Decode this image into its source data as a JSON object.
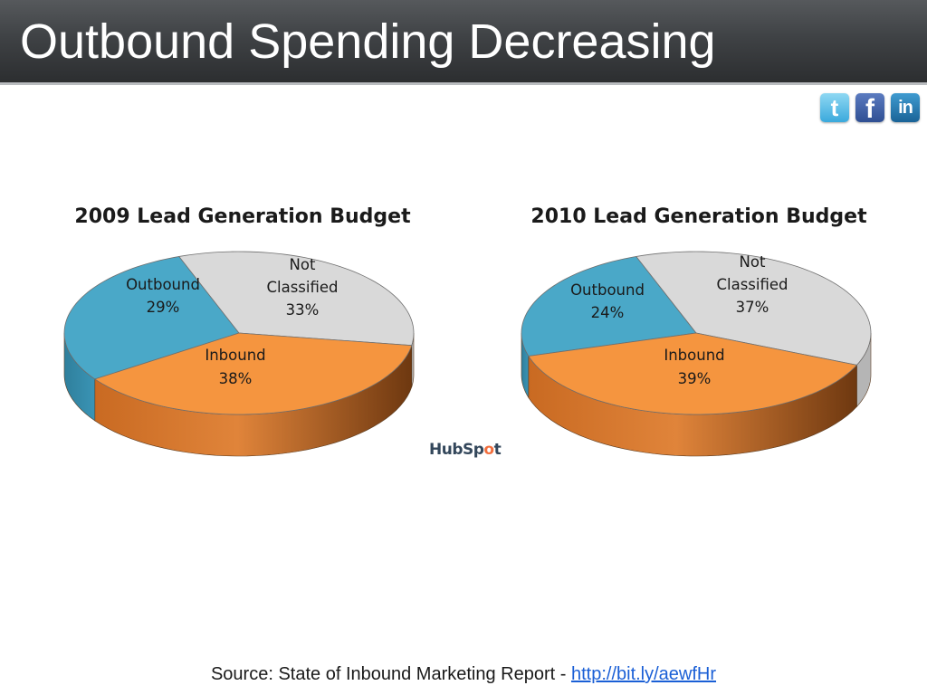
{
  "slide": {
    "title": "Outbound Spending Decreasing"
  },
  "social": [
    {
      "name": "twitter",
      "glyph": "t",
      "color": "#3aa9dc"
    },
    {
      "name": "facebook",
      "glyph": "f",
      "color": "#3b5998"
    },
    {
      "name": "linkedin",
      "glyph": "in",
      "color": "#1a6397"
    }
  ],
  "logo": {
    "text": "HubSpot"
  },
  "source": {
    "prefix": "Source: State of Inbound Marketing Report - ",
    "link_text": "http://bit.ly/aewfHr"
  },
  "colors": {
    "outbound": "#4aa8c8",
    "not_classified": "#d9d9d9",
    "inbound": "#f5953f",
    "inbound_side_dark": "#7a3f10"
  },
  "chart_data": [
    {
      "type": "pie",
      "title": "2009 Lead Generation Budget",
      "categories": [
        "Outbound",
        "Not Classified",
        "Inbound"
      ],
      "values": [
        29,
        33,
        38
      ],
      "labels": [
        [
          "Outbound",
          "29%"
        ],
        [
          "Not",
          "Classified",
          "33%"
        ],
        [
          "Inbound",
          "38%"
        ]
      ]
    },
    {
      "type": "pie",
      "title": "2010 Lead Generation Budget",
      "categories": [
        "Outbound",
        "Not Classified",
        "Inbound"
      ],
      "values": [
        24,
        37,
        39
      ],
      "labels": [
        [
          "Outbound",
          "24%"
        ],
        [
          "Not",
          "Classified",
          "37%"
        ],
        [
          "Inbound",
          "39%"
        ]
      ]
    }
  ]
}
